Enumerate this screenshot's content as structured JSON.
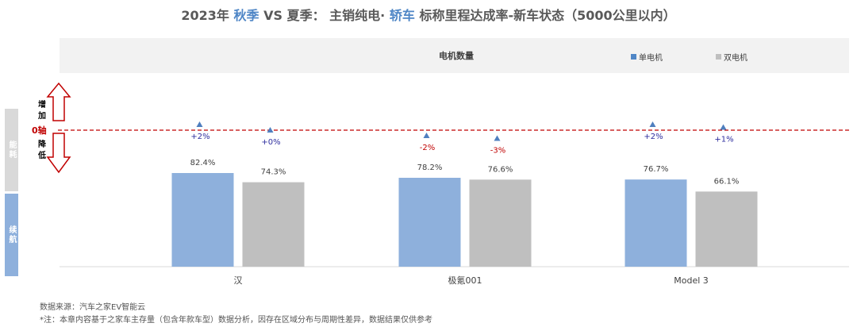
{
  "title": {
    "year": "2023年",
    "season_a": "秋季",
    "vs": "VS",
    "season_b": "夏季",
    "colon": "：",
    "mid": "主销纯电·",
    "body_type": "轿车",
    "rest": "标称里程达成率-新车状态（5000公里以内）"
  },
  "legend": {
    "title": "电机数量",
    "items": [
      "单电机",
      "双电机"
    ]
  },
  "side_labels": {
    "energy": "能耗",
    "range": "续航"
  },
  "axis_labels": {
    "increase": "增加",
    "decrease": "降低",
    "zero": "0轴"
  },
  "colors": {
    "single": "#8eb0dc",
    "dual": "#bfbfbf",
    "marker": "#4f7fbf",
    "positive": "#2f2f9f",
    "negative": "#c00000",
    "energy_band": "#d9d9d9",
    "range_band": "#8eb0dc",
    "zero_line": "#c00000"
  },
  "chart_data": {
    "type": "bar",
    "categories": [
      "汉",
      "极氪001",
      "Model 3"
    ],
    "series": [
      {
        "name": "单电机",
        "values": [
          82.4,
          78.2,
          76.7
        ],
        "labels": [
          "82.4%",
          "78.2%",
          "76.7%"
        ],
        "change": [
          2,
          -2,
          2
        ],
        "change_labels": [
          "+2%",
          "-2%",
          "+2%"
        ]
      },
      {
        "name": "双电机",
        "values": [
          74.3,
          76.6,
          66.1
        ],
        "labels": [
          "74.3%",
          "76.6%",
          "66.1%"
        ],
        "change": [
          0,
          -3,
          1
        ],
        "change_labels": [
          "+0%",
          "-3%",
          "+1%"
        ]
      }
    ],
    "ylim": [
      0,
      100
    ]
  },
  "footer": {
    "source": "数据来源：汽车之家EV智能云",
    "note": "*注：本章内容基于之家车主存量（包含年款车型）数据分析，因存在区域分布与周期性差异，数据结果仅供参考"
  }
}
